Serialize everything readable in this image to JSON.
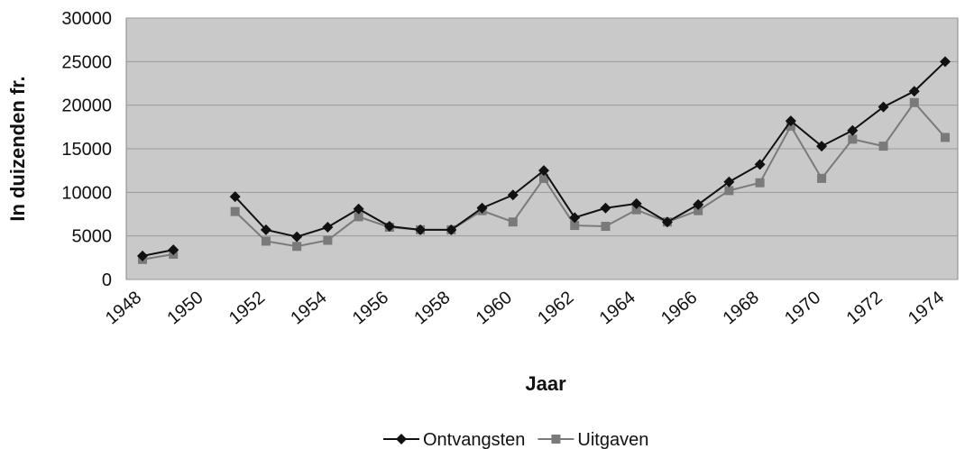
{
  "chart_data": {
    "type": "line",
    "x_label": "Jaar",
    "y_label": "In duizenden fr.",
    "categories": [
      "1948",
      null,
      "1950",
      null,
      "1952",
      null,
      "1954",
      null,
      "1956",
      null,
      "1958",
      null,
      "1960",
      null,
      "1962",
      null,
      "1964",
      null,
      "1966",
      null,
      "1968",
      null,
      "1970",
      null,
      "1972",
      null,
      "1974"
    ],
    "series": [
      {
        "name": "Ontvangsten",
        "color": "#111111",
        "marker": "diamond",
        "values": [
          2700,
          3400,
          null,
          9500,
          5700,
          4900,
          6000,
          8100,
          6100,
          5700,
          5700,
          8200,
          9700,
          12500,
          7100,
          8200,
          8700,
          6600,
          8600,
          11200,
          13200,
          18200,
          15300,
          17100,
          19800,
          21600,
          25000
        ]
      },
      {
        "name": "Uitgaven",
        "color": "#7a7a7a",
        "marker": "square",
        "values": [
          2300,
          2900,
          null,
          7800,
          4400,
          3800,
          4500,
          7200,
          6000,
          5700,
          5700,
          7900,
          6600,
          11600,
          6200,
          6100,
          8000,
          6600,
          7900,
          10200,
          11100,
          17600,
          11600,
          16100,
          15300,
          20300,
          16300
        ]
      }
    ],
    "ylim": [
      0,
      30000
    ],
    "yticks": [
      0,
      5000,
      10000,
      15000,
      20000,
      25000,
      30000
    ],
    "grid": true,
    "legend": "bottom"
  }
}
